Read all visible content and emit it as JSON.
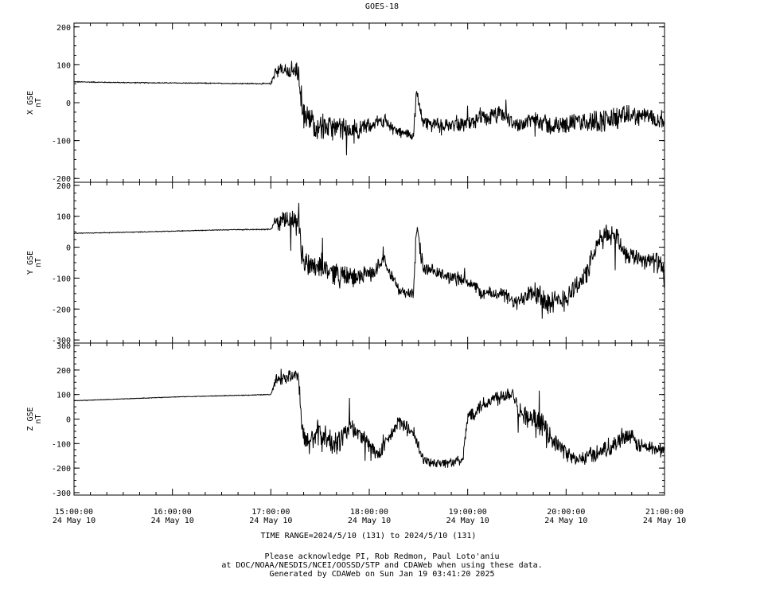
{
  "chart_data": {
    "type": "line",
    "title": "GOES-18",
    "x_ticks": [
      {
        "time": "15:00:00",
        "date": "24 May 10"
      },
      {
        "time": "16:00:00",
        "date": "24 May 10"
      },
      {
        "time": "17:00:00",
        "date": "24 May 10"
      },
      {
        "time": "18:00:00",
        "date": "24 May 10"
      },
      {
        "time": "19:00:00",
        "date": "24 May 10"
      },
      {
        "time": "20:00:00",
        "date": "24 May 10"
      },
      {
        "time": "21:00:00",
        "date": "24 May 10"
      }
    ],
    "xlim_hours": [
      15,
      21
    ],
    "line_color": "#000000",
    "panels": [
      {
        "ylabel": "X GSE",
        "unit": "nT",
        "ylim": [
          -210,
          210
        ],
        "yticks": [
          -200,
          -100,
          0,
          100,
          200
        ],
        "series": [
          {
            "x": 15.0,
            "y": 55,
            "n": 2
          },
          {
            "x": 15.5,
            "y": 53,
            "n": 2
          },
          {
            "x": 16.0,
            "y": 52,
            "n": 2
          },
          {
            "x": 16.5,
            "y": 51,
            "n": 2
          },
          {
            "x": 17.0,
            "y": 50,
            "n": 3
          },
          {
            "x": 17.05,
            "y": 85,
            "n": 35
          },
          {
            "x": 17.2,
            "y": 85,
            "n": 40
          },
          {
            "x": 17.28,
            "y": 80,
            "n": 45
          },
          {
            "x": 17.33,
            "y": -40,
            "n": 70
          },
          {
            "x": 17.5,
            "y": -60,
            "n": 60
          },
          {
            "x": 17.7,
            "y": -70,
            "n": 55
          },
          {
            "x": 17.85,
            "y": -75,
            "n": 50
          },
          {
            "x": 18.0,
            "y": -60,
            "n": 30
          },
          {
            "x": 18.15,
            "y": -45,
            "n": 30
          },
          {
            "x": 18.3,
            "y": -80,
            "n": 25
          },
          {
            "x": 18.45,
            "y": -85,
            "n": 25
          },
          {
            "x": 18.48,
            "y": 20,
            "n": 45
          },
          {
            "x": 18.55,
            "y": -50,
            "n": 30
          },
          {
            "x": 18.75,
            "y": -60,
            "n": 25
          },
          {
            "x": 19.0,
            "y": -55,
            "n": 35
          },
          {
            "x": 19.2,
            "y": -40,
            "n": 40
          },
          {
            "x": 19.35,
            "y": -30,
            "n": 40
          },
          {
            "x": 19.5,
            "y": -60,
            "n": 30
          },
          {
            "x": 19.7,
            "y": -40,
            "n": 45
          },
          {
            "x": 19.85,
            "y": -65,
            "n": 45
          },
          {
            "x": 20.0,
            "y": -55,
            "n": 40
          },
          {
            "x": 20.2,
            "y": -50,
            "n": 45
          },
          {
            "x": 20.45,
            "y": -45,
            "n": 60
          },
          {
            "x": 20.6,
            "y": -35,
            "n": 45
          },
          {
            "x": 20.8,
            "y": -35,
            "n": 40
          },
          {
            "x": 21.0,
            "y": -45,
            "n": 40
          }
        ]
      },
      {
        "ylabel": "Y GSE",
        "unit": "nT",
        "ylim": [
          -310,
          210
        ],
        "yticks": [
          -300,
          -200,
          -100,
          0,
          100,
          200
        ],
        "series": [
          {
            "x": 15.0,
            "y": 45,
            "n": 2
          },
          {
            "x": 15.5,
            "y": 48,
            "n": 2
          },
          {
            "x": 16.0,
            "y": 52,
            "n": 2
          },
          {
            "x": 16.5,
            "y": 56,
            "n": 2
          },
          {
            "x": 17.0,
            "y": 58,
            "n": 3
          },
          {
            "x": 17.05,
            "y": 80,
            "n": 50
          },
          {
            "x": 17.2,
            "y": 85,
            "n": 60
          },
          {
            "x": 17.28,
            "y": 70,
            "n": 70
          },
          {
            "x": 17.33,
            "y": -50,
            "n": 80
          },
          {
            "x": 17.5,
            "y": -60,
            "n": 70
          },
          {
            "x": 17.7,
            "y": -90,
            "n": 65
          },
          {
            "x": 17.85,
            "y": -100,
            "n": 55
          },
          {
            "x": 18.05,
            "y": -80,
            "n": 40
          },
          {
            "x": 18.15,
            "y": -35,
            "n": 40
          },
          {
            "x": 18.3,
            "y": -140,
            "n": 30
          },
          {
            "x": 18.45,
            "y": -150,
            "n": 30
          },
          {
            "x": 18.48,
            "y": 60,
            "n": 65
          },
          {
            "x": 18.55,
            "y": -70,
            "n": 40
          },
          {
            "x": 18.75,
            "y": -90,
            "n": 35
          },
          {
            "x": 19.0,
            "y": -110,
            "n": 40
          },
          {
            "x": 19.15,
            "y": -150,
            "n": 35
          },
          {
            "x": 19.35,
            "y": -150,
            "n": 40
          },
          {
            "x": 19.5,
            "y": -185,
            "n": 40
          },
          {
            "x": 19.65,
            "y": -130,
            "n": 75
          },
          {
            "x": 19.85,
            "y": -190,
            "n": 75
          },
          {
            "x": 20.0,
            "y": -160,
            "n": 70
          },
          {
            "x": 20.2,
            "y": -90,
            "n": 60
          },
          {
            "x": 20.35,
            "y": 30,
            "n": 60
          },
          {
            "x": 20.5,
            "y": 45,
            "n": 60
          },
          {
            "x": 20.6,
            "y": -20,
            "n": 50
          },
          {
            "x": 20.8,
            "y": -40,
            "n": 50
          },
          {
            "x": 20.95,
            "y": -50,
            "n": 60
          },
          {
            "x": 21.0,
            "y": -100,
            "n": 60
          }
        ]
      },
      {
        "ylabel": "Z GSE",
        "unit": "nT",
        "ylim": [
          -310,
          310
        ],
        "yticks": [
          -300,
          -200,
          -100,
          0,
          100,
          200,
          300
        ],
        "series": [
          {
            "x": 15.0,
            "y": 75,
            "n": 2
          },
          {
            "x": 15.5,
            "y": 82,
            "n": 2
          },
          {
            "x": 16.0,
            "y": 90,
            "n": 2
          },
          {
            "x": 16.5,
            "y": 95,
            "n": 2
          },
          {
            "x": 17.0,
            "y": 100,
            "n": 3
          },
          {
            "x": 17.05,
            "y": 160,
            "n": 45
          },
          {
            "x": 17.2,
            "y": 175,
            "n": 45
          },
          {
            "x": 17.28,
            "y": 170,
            "n": 50
          },
          {
            "x": 17.33,
            "y": -100,
            "n": 110
          },
          {
            "x": 17.5,
            "y": -60,
            "n": 100
          },
          {
            "x": 17.65,
            "y": -110,
            "n": 90
          },
          {
            "x": 17.8,
            "y": -30,
            "n": 80
          },
          {
            "x": 17.95,
            "y": -80,
            "n": 60
          },
          {
            "x": 18.1,
            "y": -150,
            "n": 50
          },
          {
            "x": 18.3,
            "y": -10,
            "n": 50
          },
          {
            "x": 18.45,
            "y": -60,
            "n": 50
          },
          {
            "x": 18.55,
            "y": -170,
            "n": 40
          },
          {
            "x": 18.75,
            "y": -180,
            "n": 35
          },
          {
            "x": 18.95,
            "y": -170,
            "n": 35
          },
          {
            "x": 19.0,
            "y": 10,
            "n": 60
          },
          {
            "x": 19.15,
            "y": 60,
            "n": 55
          },
          {
            "x": 19.3,
            "y": 90,
            "n": 60
          },
          {
            "x": 19.45,
            "y": 110,
            "n": 55
          },
          {
            "x": 19.55,
            "y": 20,
            "n": 70
          },
          {
            "x": 19.75,
            "y": -20,
            "n": 80
          },
          {
            "x": 19.9,
            "y": -100,
            "n": 60
          },
          {
            "x": 20.1,
            "y": -170,
            "n": 50
          },
          {
            "x": 20.3,
            "y": -140,
            "n": 60
          },
          {
            "x": 20.5,
            "y": -100,
            "n": 60
          },
          {
            "x": 20.6,
            "y": -60,
            "n": 70
          },
          {
            "x": 20.75,
            "y": -110,
            "n": 55
          },
          {
            "x": 20.9,
            "y": -120,
            "n": 55
          },
          {
            "x": 21.0,
            "y": -130,
            "n": 50
          }
        ]
      }
    ]
  },
  "time_range": "TIME RANGE=2024/5/10 (131) to 2024/5/10 (131)",
  "footer": {
    "line1": "Please acknowledge PI, Rob Redmon, Paul Loto'aniu",
    "line2": "at DOC/NOAA/NESDIS/NCEI/OOSSD/STP and CDAWeb when using these data.",
    "line3": "Generated by CDAWeb on Sun Jan 19 03:41:20 2025"
  }
}
